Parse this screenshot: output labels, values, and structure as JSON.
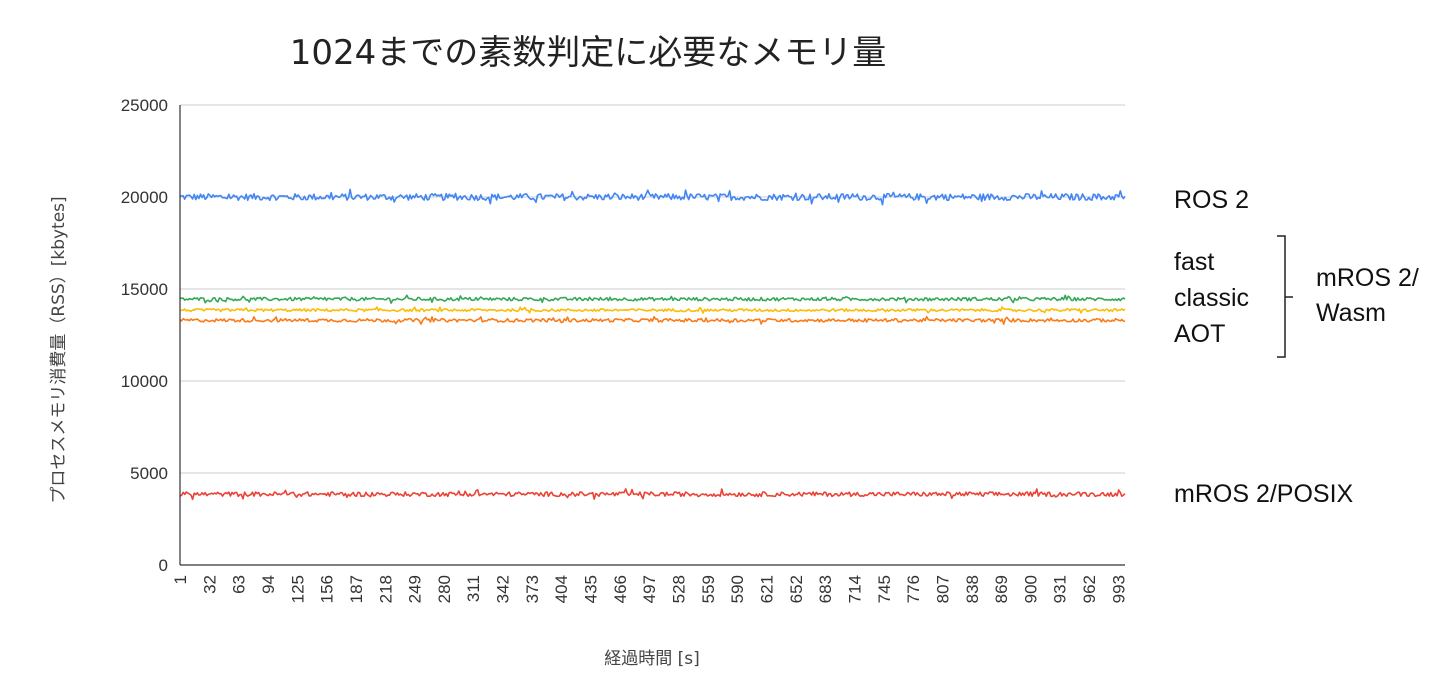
{
  "chart_data": {
    "type": "line",
    "title": "1024までの素数判定に必要なメモリ量",
    "xlabel": "経過時間 [s]",
    "ylabel": "プロセスメモリ消費量（RSS）[kbytes]",
    "ylim": [
      0,
      25000
    ],
    "yticks": [
      0,
      5000,
      10000,
      15000,
      20000,
      25000
    ],
    "xlim": [
      1,
      1000
    ],
    "xticks": [
      1,
      32,
      63,
      94,
      125,
      156,
      187,
      218,
      249,
      280,
      311,
      342,
      373,
      404,
      435,
      466,
      497,
      528,
      559,
      590,
      621,
      652,
      683,
      714,
      745,
      776,
      807,
      838,
      869,
      900,
      931,
      962,
      993
    ],
    "grid": true,
    "legend": "right",
    "series": [
      {
        "name": "ROS 2",
        "color": "#4285f4",
        "base": 20000,
        "noise": 300,
        "label": "ROS 2"
      },
      {
        "name": "fast",
        "color": "#34a853",
        "base": 14450,
        "noise": 150
      },
      {
        "name": "classic",
        "color": "#fbbc04",
        "base": 13850,
        "noise": 120
      },
      {
        "name": "AOT",
        "color": "#fa7b17",
        "base": 13300,
        "noise": 150
      },
      {
        "name": "mROS 2/POSIX",
        "color": "#ea4335",
        "base": 3850,
        "noise": 200,
        "label": "mROS 2/POSIX"
      }
    ],
    "group_labels": [
      "fast",
      "classic",
      "AOT"
    ],
    "group_name_line1": "mROS 2/",
    "group_name_line2": "Wasm"
  }
}
